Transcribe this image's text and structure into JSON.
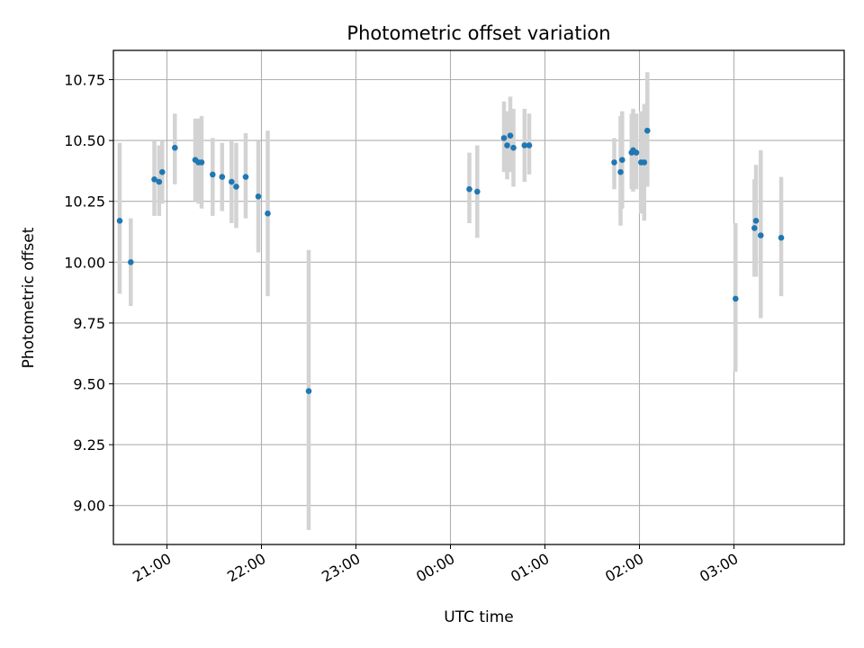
{
  "chart_data": {
    "type": "scatter",
    "title": "Photometric offset variation",
    "xlabel": "UTC time",
    "ylabel": "Photometric offset",
    "x_unit": "UTC time (HH:MM), evening to following morning",
    "xlim": [
      "20:26",
      "04:10"
    ],
    "ylim": [
      8.84,
      10.87
    ],
    "x_ticks": [
      "21:00",
      "22:00",
      "23:00",
      "00:00",
      "01:00",
      "02:00",
      "03:00"
    ],
    "y_ticks": [
      "9.00",
      "9.25",
      "9.50",
      "9.75",
      "10.00",
      "10.25",
      "10.50",
      "10.75"
    ],
    "y_tick_values": [
      9.0,
      9.25,
      9.5,
      9.75,
      10.0,
      10.25,
      10.5,
      10.75
    ],
    "grid": true,
    "legend": "none",
    "colors": {
      "marker": "#1f77b4",
      "errorbar": "#d3d3d3",
      "grid": "#b0b0b0"
    },
    "points": [
      {
        "x": "20:30",
        "y": 10.17,
        "err_low": 9.87,
        "err_high": 10.49
      },
      {
        "x": "20:37",
        "y": 10.0,
        "err_low": 9.82,
        "err_high": 10.18
      },
      {
        "x": "20:52",
        "y": 10.34,
        "err_low": 10.19,
        "err_high": 10.5
      },
      {
        "x": "20:55",
        "y": 10.33,
        "err_low": 10.19,
        "err_high": 10.48
      },
      {
        "x": "20:57",
        "y": 10.37,
        "err_low": 10.24,
        "err_high": 10.5
      },
      {
        "x": "21:05",
        "y": 10.47,
        "err_low": 10.32,
        "err_high": 10.61
      },
      {
        "x": "21:18",
        "y": 10.42,
        "err_low": 10.25,
        "err_high": 10.59
      },
      {
        "x": "21:20",
        "y": 10.41,
        "err_low": 10.24,
        "err_high": 10.59
      },
      {
        "x": "21:22",
        "y": 10.41,
        "err_low": 10.22,
        "err_high": 10.6
      },
      {
        "x": "21:29",
        "y": 10.36,
        "err_low": 10.19,
        "err_high": 10.51
      },
      {
        "x": "21:35",
        "y": 10.35,
        "err_low": 10.21,
        "err_high": 10.49
      },
      {
        "x": "21:41",
        "y": 10.33,
        "err_low": 10.16,
        "err_high": 10.5
      },
      {
        "x": "21:44",
        "y": 10.31,
        "err_low": 10.14,
        "err_high": 10.49
      },
      {
        "x": "21:50",
        "y": 10.35,
        "err_low": 10.18,
        "err_high": 10.53
      },
      {
        "x": "21:58",
        "y": 10.27,
        "err_low": 10.04,
        "err_high": 10.5
      },
      {
        "x": "22:04",
        "y": 10.2,
        "err_low": 9.86,
        "err_high": 10.54
      },
      {
        "x": "22:30",
        "y": 9.47,
        "err_low": 8.9,
        "err_high": 10.05
      },
      {
        "x": "00:12",
        "y": 10.3,
        "err_low": 10.16,
        "err_high": 10.45
      },
      {
        "x": "00:17",
        "y": 10.29,
        "err_low": 10.1,
        "err_high": 10.48
      },
      {
        "x": "00:34",
        "y": 10.51,
        "err_low": 10.37,
        "err_high": 10.66
      },
      {
        "x": "00:36",
        "y": 10.48,
        "err_low": 10.34,
        "err_high": 10.62
      },
      {
        "x": "00:38",
        "y": 10.52,
        "err_low": 10.37,
        "err_high": 10.68
      },
      {
        "x": "00:40",
        "y": 10.47,
        "err_low": 10.31,
        "err_high": 10.63
      },
      {
        "x": "00:47",
        "y": 10.48,
        "err_low": 10.33,
        "err_high": 10.63
      },
      {
        "x": "00:50",
        "y": 10.48,
        "err_low": 10.36,
        "err_high": 10.61
      },
      {
        "x": "01:44",
        "y": 10.41,
        "err_low": 10.3,
        "err_high": 10.51
      },
      {
        "x": "01:48",
        "y": 10.37,
        "err_low": 10.15,
        "err_high": 10.6
      },
      {
        "x": "01:49",
        "y": 10.42,
        "err_low": 10.22,
        "err_high": 10.62
      },
      {
        "x": "01:55",
        "y": 10.45,
        "err_low": 10.3,
        "err_high": 10.61
      },
      {
        "x": "01:56",
        "y": 10.46,
        "err_low": 10.29,
        "err_high": 10.63
      },
      {
        "x": "01:58",
        "y": 10.45,
        "err_low": 10.3,
        "err_high": 10.61
      },
      {
        "x": "02:01",
        "y": 10.41,
        "err_low": 10.2,
        "err_high": 10.62
      },
      {
        "x": "02:03",
        "y": 10.41,
        "err_low": 10.17,
        "err_high": 10.65
      },
      {
        "x": "02:05",
        "y": 10.54,
        "err_low": 10.31,
        "err_high": 10.78
      },
      {
        "x": "03:01",
        "y": 9.85,
        "err_low": 9.55,
        "err_high": 10.16
      },
      {
        "x": "03:13",
        "y": 10.14,
        "err_low": 9.94,
        "err_high": 10.34
      },
      {
        "x": "03:14",
        "y": 10.17,
        "err_low": 9.94,
        "err_high": 10.4
      },
      {
        "x": "03:17",
        "y": 10.11,
        "err_low": 9.77,
        "err_high": 10.46
      },
      {
        "x": "03:30",
        "y": 10.1,
        "err_low": 9.86,
        "err_high": 10.35
      }
    ]
  }
}
